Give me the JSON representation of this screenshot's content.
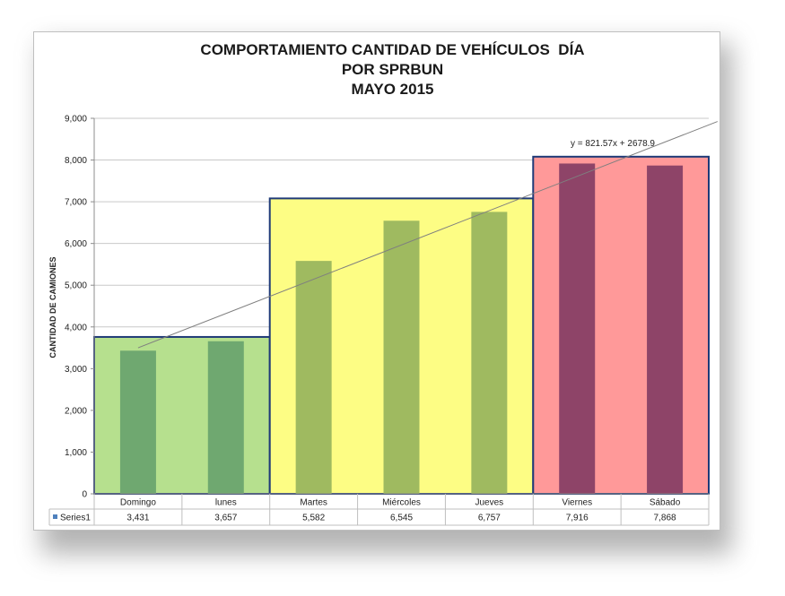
{
  "chart_data": {
    "type": "bar",
    "title": [
      "COMPORTAMIENTO CANTIDAD DE VEHÍCULOS  DÍA",
      "POR SPRBUN",
      "MAYO 2015"
    ],
    "ylabel": "CANTIDAD DE CAMIONES",
    "xlabel": "",
    "ylim": [
      0,
      9000
    ],
    "yticks": [
      "0",
      "1,000",
      "2,000",
      "3,000",
      "4,000",
      "5,000",
      "6,000",
      "7,000",
      "8,000",
      "9,000"
    ],
    "ytick_values": [
      0,
      1000,
      2000,
      3000,
      4000,
      5000,
      6000,
      7000,
      8000,
      9000
    ],
    "categories": [
      "Domingo",
      "lunes",
      "Martes",
      "Miércoles",
      "Jueves",
      "Viernes",
      "Sábado"
    ],
    "series": [
      {
        "name": "Series1",
        "values": [
          3431,
          3657,
          5582,
          6545,
          6757,
          7916,
          7868
        ],
        "labels": [
          "3,431",
          "3,657",
          "5,582",
          "6,545",
          "6,757",
          "7,916",
          "7,868"
        ]
      }
    ],
    "trendline": {
      "equation": "y = 821.57x + 2678.9",
      "slope": 821.57,
      "intercept": 2678.9
    },
    "groups": [
      {
        "from": 0,
        "to": 1,
        "level": 3760,
        "fill": "#b6e08e",
        "bar_color": "#6fa870"
      },
      {
        "from": 2,
        "to": 4,
        "level": 7080,
        "fill": "#fdfd84",
        "bar_color": "#9fba60"
      },
      {
        "from": 5,
        "to": 6,
        "level": 8080,
        "fill": "#ff9999",
        "bar_color": "#8e4468"
      }
    ],
    "group_border_color": "#1f3a78",
    "grid": true,
    "data_table": true
  }
}
